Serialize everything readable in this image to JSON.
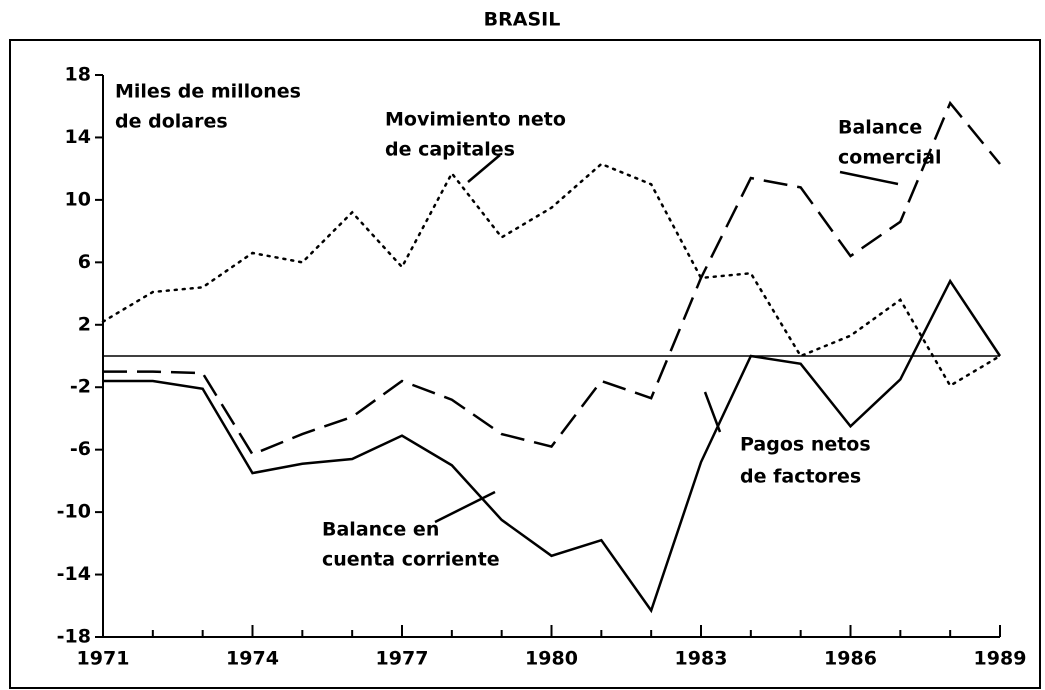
{
  "chart_data": {
    "type": "line",
    "title": "BRASIL",
    "y_label": [
      "Miles de millones",
      "de dolares"
    ],
    "x": [
      1971,
      1972,
      1973,
      1974,
      1975,
      1976,
      1977,
      1978,
      1979,
      1980,
      1981,
      1982,
      1983,
      1984,
      1985,
      1986,
      1987,
      1988,
      1989
    ],
    "xlim": [
      1971,
      1989
    ],
    "xticks": [
      1971,
      1974,
      1977,
      1980,
      1983,
      1986,
      1989
    ],
    "ylim": [
      -18,
      18
    ],
    "yticks": [
      18,
      14,
      10,
      6,
      2,
      -2,
      -6,
      -10,
      -14,
      -18
    ],
    "series": [
      {
        "label": [
          "Movimiento neto",
          "de capitales"
        ],
        "color": "#000000",
        "style": "dotted",
        "values": [
          2.2,
          4.1,
          4.4,
          6.6,
          6.0,
          9.2,
          5.7,
          11.7,
          7.6,
          9.5,
          12.3,
          11.0,
          5.0,
          5.3,
          0.0,
          1.3,
          3.6,
          -1.9,
          0.0
        ]
      },
      {
        "label": [
          "Balance",
          "comercial"
        ],
        "color": "#000000",
        "style": "dashed",
        "values": [
          -1.0,
          -1.0,
          -1.1,
          -6.3,
          -5.0,
          -3.9,
          -1.6,
          -2.8,
          -5.0,
          -5.8,
          -1.6,
          -2.7,
          5.0,
          11.4,
          10.8,
          6.4,
          8.6,
          16.2,
          12.3
        ]
      },
      {
        "label": [
          "Balance en",
          "cuenta corriente"
        ],
        "color": "#000000",
        "style": "solid",
        "values": [
          -1.6,
          -1.6,
          -2.1,
          -7.5,
          -6.9,
          -6.6,
          -5.1,
          -7.0,
          -10.5,
          -12.8,
          -11.8,
          -16.3,
          -6.8,
          0.0,
          -0.5,
          -4.5,
          -1.5,
          4.8,
          0.0
        ]
      }
    ],
    "annotation": [
      "Pagos netos",
      "de factores"
    ]
  }
}
